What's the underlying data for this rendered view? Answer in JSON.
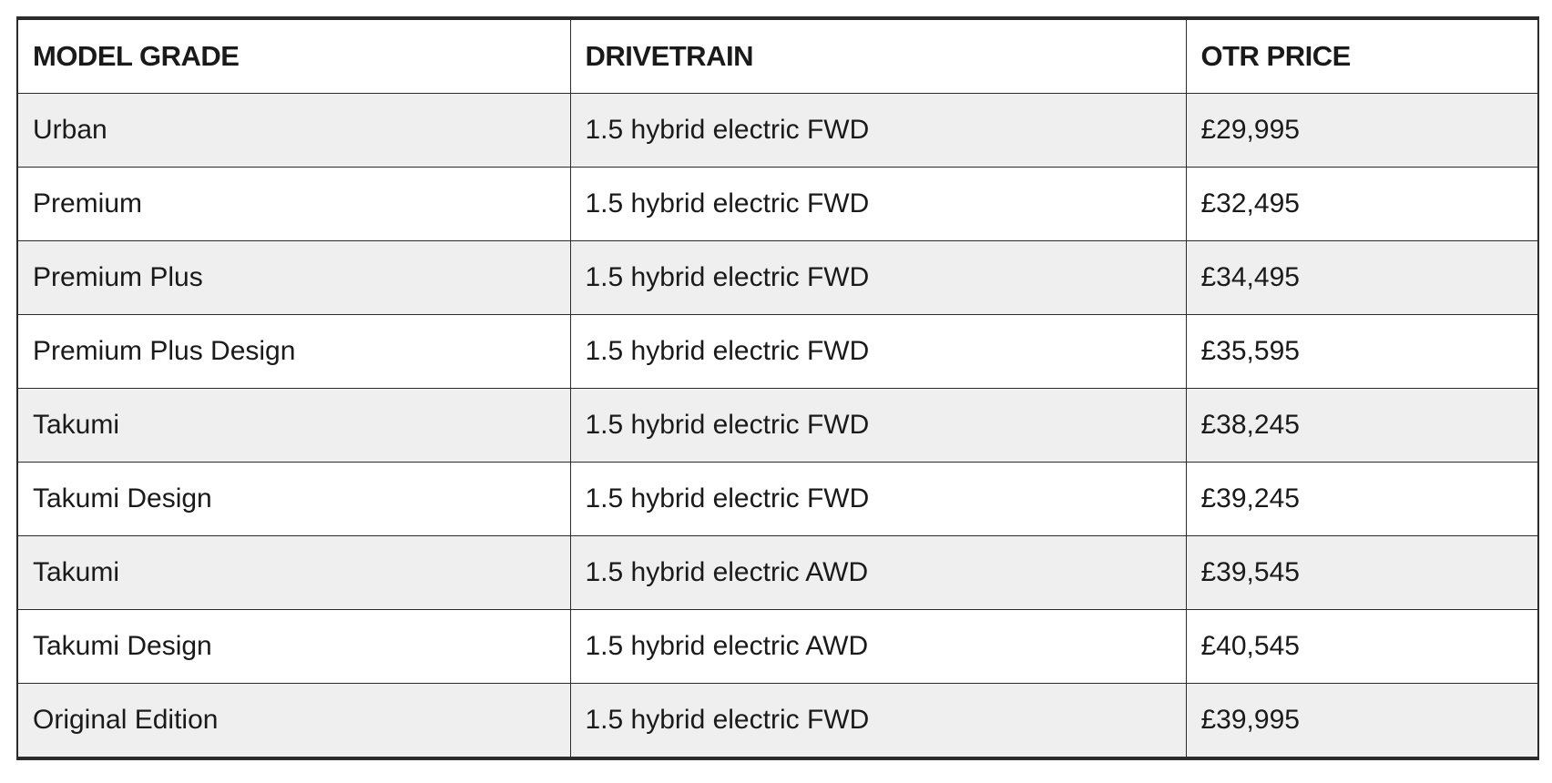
{
  "table": {
    "headers": [
      "MODEL GRADE",
      "DRIVETRAIN",
      "OTR PRICE"
    ],
    "rows": [
      [
        "Urban",
        "1.5 hybrid electric FWD",
        "£29,995"
      ],
      [
        "Premium",
        "1.5 hybrid electric FWD",
        "£32,495"
      ],
      [
        "Premium Plus",
        "1.5 hybrid electric FWD",
        "£34,495"
      ],
      [
        "Premium Plus Design",
        "1.5 hybrid electric FWD",
        "£35,595"
      ],
      [
        "Takumi",
        "1.5 hybrid electric FWD",
        "£38,245"
      ],
      [
        "Takumi Design",
        "1.5 hybrid electric FWD",
        "£39,245"
      ],
      [
        "Takumi",
        "1.5 hybrid electric AWD",
        "£39,545"
      ],
      [
        "Takumi Design",
        "1.5 hybrid electric AWD",
        "£40,545"
      ],
      [
        "Original Edition",
        "1.5 hybrid electric FWD",
        "£39,995"
      ]
    ]
  },
  "colors": {
    "border": "#2b2b2b",
    "stripe": "#efefef",
    "background": "#ffffff",
    "text": "#1a1a1a"
  }
}
